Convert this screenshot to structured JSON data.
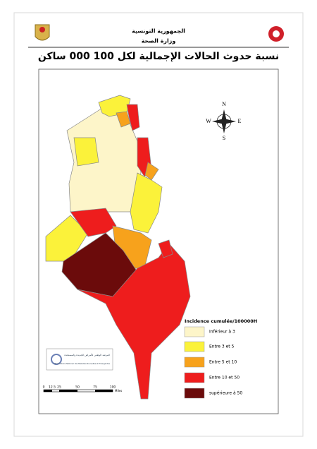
{
  "header": {
    "line1": "الجمهورية التونسية",
    "line2": "وزارة الصحة"
  },
  "title": "نسبة حدوث الحالات الإجمالية لكل 100 000 ساكن",
  "compass": {
    "north": "N",
    "east": "E",
    "south": "S",
    "west": "W"
  },
  "legend": {
    "title": "Incidence cumulée/100000H",
    "items": [
      {
        "label": "Inférieur à 3",
        "color": "#fdf5c9"
      },
      {
        "label": "Entre 3 et 5",
        "color": "#fbf23a"
      },
      {
        "label": "Entre 5 et 10",
        "color": "#f7a21c"
      },
      {
        "label": "Entre 10 et 50",
        "color": "#ee1d1d"
      },
      {
        "label": "supérieure à 50",
        "color": "#6b0b0b"
      }
    ]
  },
  "scale": {
    "ticks": [
      "0",
      "12.5",
      "25",
      "50",
      "75",
      "100"
    ],
    "unit": "Miles"
  },
  "logo": {
    "arabic": "المرصد الوطني للأمراض الجديدة والمستجدة",
    "french": "Observatoire National des Maladies Nouvelles et Emergentes"
  }
}
